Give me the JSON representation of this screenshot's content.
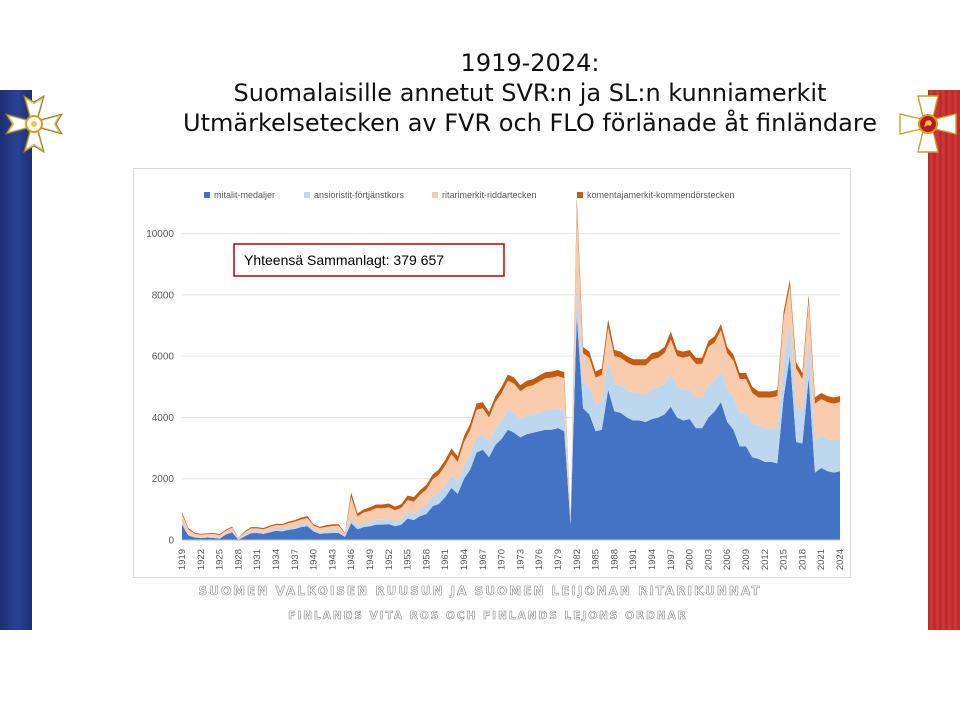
{
  "title": {
    "line1": "1919-2024:",
    "line2": "Suomalaisille annetut SVR:n ja SL:n kunniamerkit",
    "line3": "Utmärkelsetecken av FVR och FLO förlänade åt finländare"
  },
  "annotation": "Yhteensä Sammanlagt: 379 657",
  "footer": {
    "line1": "SUOMEN VALKOISEN RUUSUN JA SUOMEN LEIJONAN RITARIKUNNAT",
    "line2": "FINLANDS VITA ROS OCH FINLANDS LEJONS ORDNAR"
  },
  "colors": {
    "medals": "#4472c4",
    "merit_crosses": "#bdd7ee",
    "knight": "#f8cbad",
    "commander": "#c55a11",
    "ribbon_left": "#253a86",
    "ribbon_right": "#c22a2f",
    "annotation_border": "#c00000"
  },
  "icons": {
    "left": "white-rose-cross-icon",
    "right": "lion-cross-icon"
  },
  "chart_data": {
    "type": "area",
    "stacked": true,
    "years": [
      1919,
      1920,
      1921,
      1922,
      1923,
      1924,
      1925,
      1926,
      1927,
      1928,
      1929,
      1930,
      1931,
      1932,
      1933,
      1934,
      1935,
      1936,
      1937,
      1938,
      1939,
      1940,
      1941,
      1942,
      1943,
      1944,
      1945,
      1946,
      1947,
      1948,
      1949,
      1950,
      1951,
      1952,
      1953,
      1954,
      1955,
      1956,
      1957,
      1958,
      1959,
      1960,
      1961,
      1962,
      1963,
      1964,
      1965,
      1966,
      1967,
      1968,
      1969,
      1970,
      1971,
      1972,
      1973,
      1974,
      1975,
      1976,
      1977,
      1978,
      1979,
      1980,
      1981,
      1982,
      1983,
      1984,
      1985,
      1986,
      1987,
      1988,
      1989,
      1990,
      1991,
      1992,
      1993,
      1994,
      1995,
      1996,
      1997,
      1998,
      1999,
      2000,
      2001,
      2002,
      2003,
      2004,
      2005,
      2006,
      2007,
      2008,
      2009,
      2010,
      2011,
      2012,
      2013,
      2014,
      2015,
      2016,
      2017,
      2018,
      2019,
      2020,
      2021,
      2022,
      2023,
      2024
    ],
    "x_tick_labels": [
      "1919",
      "1922",
      "1925",
      "1928",
      "1931",
      "1934",
      "1937",
      "1940",
      "1943",
      "1946",
      "1949",
      "1952",
      "1955",
      "1958",
      "1961",
      "1964",
      "1967",
      "1970",
      "1973",
      "1976",
      "1979",
      "1982",
      "1985",
      "1988",
      "1991",
      "1994",
      "1997",
      "2000",
      "2003",
      "2006",
      "2009",
      "2012",
      "2015",
      "2018",
      "2021",
      "2024"
    ],
    "y_ticks": [
      0,
      2000,
      4000,
      6000,
      8000,
      10000
    ],
    "ylim": [
      0,
      11000
    ],
    "legend_position": "top",
    "grid": "horizontal",
    "series": [
      {
        "name": "mitalit-medaljer",
        "values": [
          500,
          150,
          80,
          60,
          80,
          70,
          40,
          180,
          250,
          10,
          120,
          220,
          230,
          200,
          250,
          300,
          280,
          330,
          360,
          420,
          450,
          280,
          200,
          220,
          230,
          230,
          100,
          550,
          350,
          420,
          450,
          500,
          500,
          520,
          450,
          500,
          700,
          650,
          780,
          850,
          1100,
          1180,
          1400,
          1700,
          1500,
          2000,
          2300,
          2850,
          2950,
          2700,
          3100,
          3300,
          3600,
          3500,
          3350,
          3450,
          3500,
          3550,
          3600,
          3600,
          3650,
          3550,
          500,
          7300,
          4300,
          4100,
          3550,
          3600,
          4900,
          4200,
          4150,
          4000,
          3900,
          3900,
          3850,
          3950,
          4000,
          4100,
          4350,
          4000,
          3900,
          3950,
          3650,
          3650,
          4000,
          4200,
          4500,
          3850,
          3600,
          3050,
          3050,
          2700,
          2650,
          2550,
          2550,
          2500,
          4650,
          6000,
          3200,
          3150,
          5300,
          2200,
          2350,
          2250,
          2200,
          2250
        ]
      },
      {
        "name": "ansioristit-förtjänstkors",
        "values": [
          80,
          50,
          40,
          30,
          30,
          40,
          40,
          30,
          40,
          20,
          40,
          60,
          50,
          50,
          60,
          60,
          70,
          70,
          80,
          80,
          90,
          60,
          60,
          70,
          80,
          80,
          40,
          150,
          120,
          130,
          150,
          160,
          160,
          170,
          170,
          180,
          200,
          200,
          250,
          300,
          330,
          360,
          380,
          400,
          400,
          450,
          500,
          500,
          500,
          500,
          550,
          600,
          650,
          650,
          600,
          600,
          600,
          620,
          630,
          650,
          650,
          680,
          70,
          1100,
          850,
          900,
          900,
          900,
          1000,
          900,
          900,
          900,
          900,
          900,
          900,
          1000,
          1000,
          1000,
          1100,
          1000,
          1000,
          1000,
          1000,
          1000,
          1050,
          1000,
          1050,
          1050,
          1050,
          1100,
          1100,
          1100,
          1100,
          1100,
          1100,
          1100,
          1100,
          1200,
          1100,
          1100,
          1300,
          1050,
          1050,
          1050,
          1050,
          1050
        ]
      },
      {
        "name": "ritarimerkit-riddartecken",
        "values": [
          280,
          150,
          90,
          80,
          80,
          90,
          80,
          100,
          120,
          30,
          90,
          100,
          100,
          100,
          120,
          130,
          130,
          150,
          160,
          170,
          180,
          130,
          130,
          140,
          150,
          160,
          70,
          700,
          300,
          350,
          350,
          380,
          380,
          380,
          350,
          370,
          400,
          400,
          450,
          500,
          550,
          600,
          650,
          700,
          650,
          750,
          800,
          900,
          850,
          800,
          850,
          900,
          950,
          950,
          900,
          950,
          950,
          1000,
          1050,
          1050,
          1050,
          1050,
          150,
          2500,
          950,
          950,
          850,
          900,
          1050,
          900,
          900,
          900,
          900,
          900,
          950,
          950,
          950,
          1000,
          1100,
          1000,
          1050,
          1050,
          1100,
          1100,
          1250,
          1250,
          1300,
          1200,
          1200,
          1100,
          1100,
          1000,
          900,
          1000,
          1000,
          1100,
          1500,
          1100,
          1300,
          1000,
          1200,
          1200,
          1200,
          1200,
          1200,
          1200
        ]
      },
      {
        "name": "komentajamerkit-kommendörstecken",
        "values": [
          60,
          40,
          30,
          30,
          30,
          30,
          30,
          30,
          30,
          15,
          30,
          40,
          40,
          40,
          40,
          40,
          40,
          50,
          50,
          60,
          60,
          40,
          40,
          50,
          50,
          50,
          20,
          150,
          100,
          100,
          120,
          120,
          120,
          120,
          120,
          120,
          150,
          150,
          150,
          150,
          160,
          170,
          180,
          190,
          180,
          190,
          200,
          200,
          200,
          180,
          190,
          200,
          200,
          200,
          200,
          200,
          200,
          200,
          200,
          200,
          200,
          200,
          30,
          300,
          200,
          200,
          200,
          200,
          250,
          200,
          200,
          200,
          200,
          200,
          200,
          200,
          200,
          200,
          250,
          200,
          200,
          200,
          200,
          200,
          200,
          200,
          200,
          200,
          200,
          200,
          200,
          200,
          200,
          200,
          200,
          200,
          200,
          200,
          200,
          200,
          200,
          200,
          200,
          200,
          200,
          200
        ]
      }
    ]
  }
}
